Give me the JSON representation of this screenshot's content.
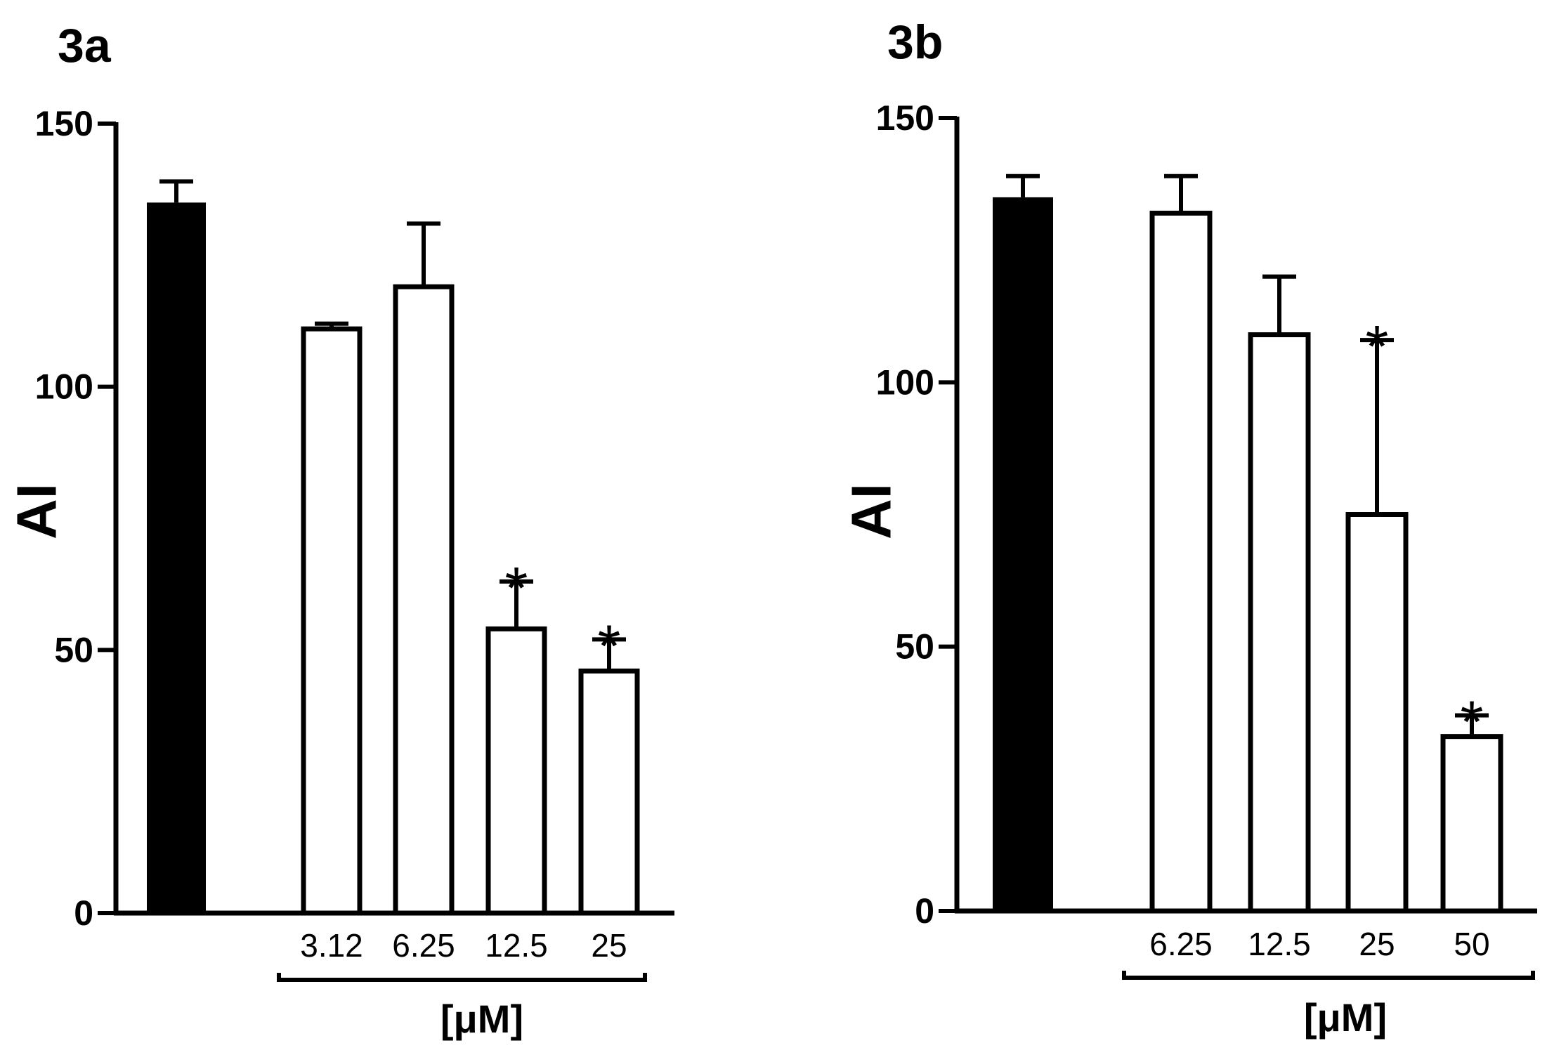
{
  "chart_data": [
    {
      "type": "bar",
      "title": "3a",
      "ylabel": "AI",
      "xlabel": "[μM]",
      "ylim": [
        0,
        150
      ],
      "yticks": [
        "0",
        "50",
        "100",
        "150"
      ],
      "categories": [
        "",
        "3.12",
        "6.25",
        "12.5",
        "25"
      ],
      "values": [
        135,
        111,
        119,
        54,
        46
      ],
      "errors": [
        4,
        1,
        12,
        9,
        6
      ],
      "fills": [
        "#000000",
        "#ffffff",
        "#ffffff",
        "#ffffff",
        "#ffffff"
      ],
      "significance": [
        "",
        "",
        "",
        "*",
        "*"
      ]
    },
    {
      "type": "bar",
      "title": "3b",
      "ylabel": "AI",
      "xlabel": "[μM]",
      "ylim": [
        0,
        150
      ],
      "yticks": [
        "0",
        "50",
        "100",
        "150"
      ],
      "categories": [
        "",
        "6.25",
        "12.5",
        "25",
        "50"
      ],
      "values": [
        135,
        132,
        109,
        75,
        33
      ],
      "errors": [
        4,
        7,
        11,
        33,
        4
      ],
      "fills": [
        "#000000",
        "#ffffff",
        "#ffffff",
        "#ffffff",
        "#ffffff"
      ],
      "significance": [
        "",
        "",
        "",
        "*",
        "*"
      ]
    }
  ]
}
